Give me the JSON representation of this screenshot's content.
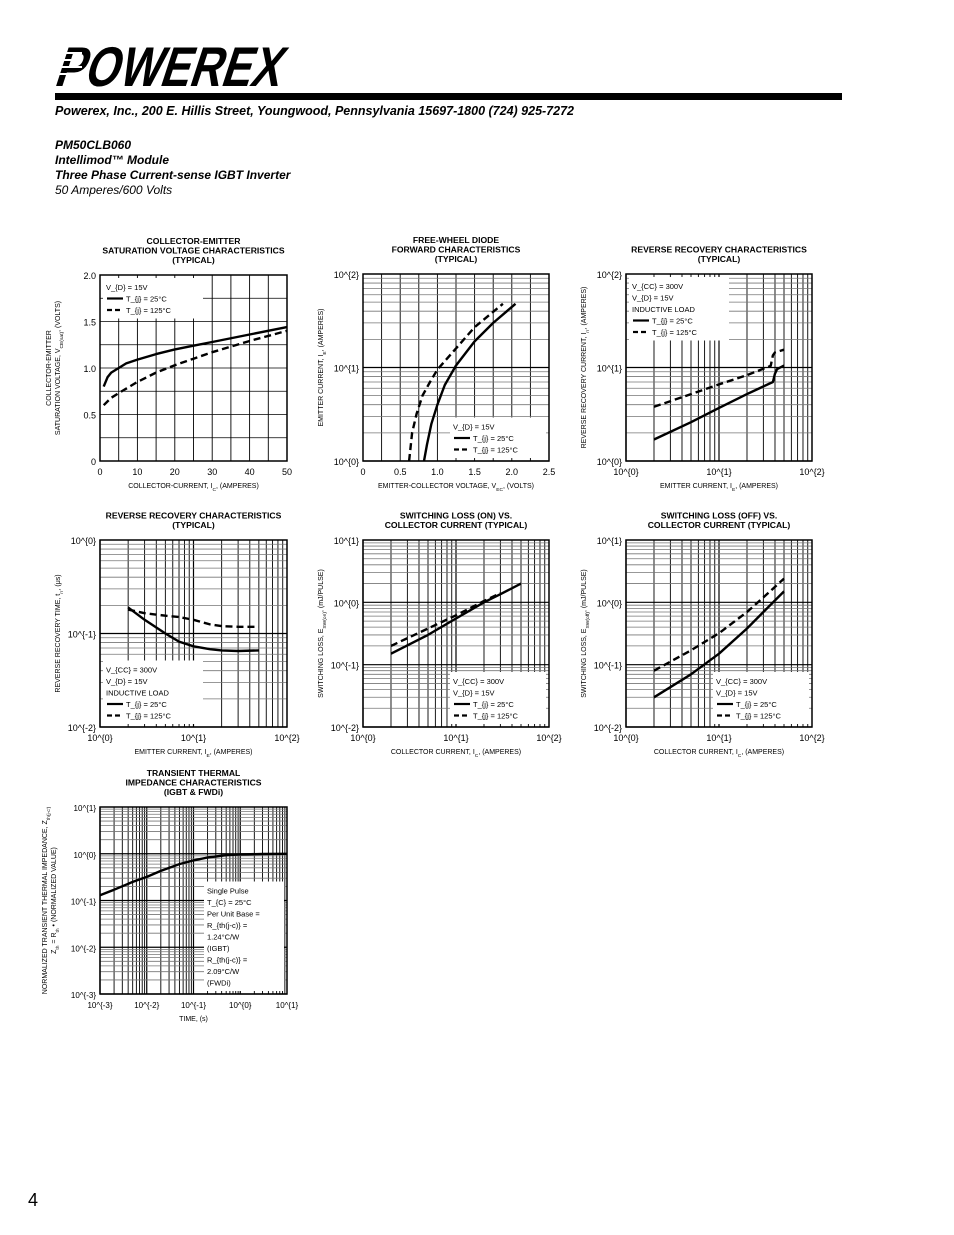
{
  "header": {
    "logo_text": "POWEREX",
    "address": "Powerex, Inc., 200 E. Hillis Street, Youngwood, Pennsylvania 15697-1800 (724) 925-7272",
    "part_number": "PM50CLB060",
    "product_line": "Intellimod™ Module",
    "description": "Three Phase Current-sense IGBT Inverter",
    "rating": "50 Amperes/600 Volts"
  },
  "page_number": "4",
  "chart_data": [
    {
      "type": "line",
      "title": [
        "COLLECTOR-EMITTER",
        "SATURATION VOLTAGE CHARACTERISTICS",
        "(TYPICAL)"
      ],
      "xlabel": "COLLECTOR-CURRENT, I_{C}, (AMPERES)",
      "ylabel": [
        "COLLECTOR-EMITTER",
        "SATURATION VOLTAGE, V_{CE(sat)}, (VOLTS)"
      ],
      "xscale": "linear",
      "yscale": "linear",
      "xlim": [
        0,
        50
      ],
      "ylim": [
        0,
        2.0
      ],
      "xticks": [
        {
          "v": 0,
          "label": "0"
        },
        {
          "v": 10,
          "label": "10"
        },
        {
          "v": 20,
          "label": "20"
        },
        {
          "v": 30,
          "label": "30"
        },
        {
          "v": 40,
          "label": "40"
        },
        {
          "v": 50,
          "label": "50"
        }
      ],
      "yticks": [
        {
          "v": 0,
          "label": "0"
        },
        {
          "v": 0.5,
          "label": "0.5"
        },
        {
          "v": 1.0,
          "label": "1.0"
        },
        {
          "v": 1.5,
          "label": "1.5"
        },
        {
          "v": 2.0,
          "label": "2.0"
        }
      ],
      "grid": true,
      "legend": {
        "placement": "top-left",
        "lines": [
          {
            "text": "V_{D} = 15V"
          },
          {
            "text": "T_{j} = 25°C",
            "style": "solid"
          },
          {
            "text": "T_{j} = 125°C",
            "style": "dashed"
          }
        ]
      },
      "series": [
        {
          "name": "T_{j} = 25°C",
          "style": "solid",
          "x": [
            1,
            2,
            3,
            5,
            7,
            10,
            15,
            20,
            25,
            30,
            40,
            50
          ],
          "y": [
            0.8,
            0.9,
            0.95,
            1.0,
            1.05,
            1.09,
            1.15,
            1.2,
            1.24,
            1.28,
            1.36,
            1.44
          ]
        },
        {
          "name": "T_{j} = 125°C",
          "style": "dashed",
          "x": [
            1,
            3,
            5,
            10,
            15,
            20,
            25,
            30,
            35,
            40,
            50
          ],
          "y": [
            0.6,
            0.68,
            0.73,
            0.85,
            0.95,
            1.03,
            1.1,
            1.17,
            1.23,
            1.29,
            1.4
          ]
        }
      ]
    },
    {
      "type": "line",
      "title": [
        "FREE-WHEEL DIODE",
        "FORWARD CHARACTERISTICS",
        "(TYPICAL)"
      ],
      "xlabel": "EMITTER-COLLECTOR VOLTAGE, V_{EC}, (VOLTS)",
      "ylabel": [
        "EMITTER CURRENT, I_{E}, (AMPERES)"
      ],
      "xscale": "linear",
      "yscale": "log",
      "xlim": [
        0,
        2.5
      ],
      "ylim": [
        1,
        100
      ],
      "xticks": [
        {
          "v": 0,
          "label": "0"
        },
        {
          "v": 0.5,
          "label": "0.5"
        },
        {
          "v": 1.0,
          "label": "1.0"
        },
        {
          "v": 1.5,
          "label": "1.5"
        },
        {
          "v": 2.0,
          "label": "2.0"
        },
        {
          "v": 2.5,
          "label": "2.5"
        }
      ],
      "yticks": [
        {
          "v": 1,
          "label": "10^{0}"
        },
        {
          "v": 10,
          "label": "10^{1}"
        },
        {
          "v": 100,
          "label": "10^{2}"
        }
      ],
      "grid": true,
      "legend": {
        "placement": "bottom-right",
        "lines": [
          {
            "text": "V_{D} = 15V"
          },
          {
            "text": "T_{j} = 25°C",
            "style": "solid"
          },
          {
            "text": "T_{j} = 125°C",
            "style": "dashed"
          }
        ]
      },
      "series": [
        {
          "name": "T_{j} = 25°C",
          "style": "solid",
          "x": [
            0.82,
            0.86,
            0.92,
            1.0,
            1.1,
            1.25,
            1.5,
            1.75,
            2.05
          ],
          "y": [
            1,
            1.5,
            2.5,
            4,
            6.5,
            10.5,
            19,
            30,
            48
          ]
        },
        {
          "name": "T_{j} = 125°C",
          "style": "dashed",
          "x": [
            0.62,
            0.66,
            0.72,
            0.8,
            0.9,
            1.0,
            1.25,
            1.5,
            1.88
          ],
          "y": [
            1,
            2,
            3.2,
            5,
            7,
            9.5,
            16,
            27,
            48
          ]
        }
      ]
    },
    {
      "type": "line",
      "title": [
        "REVERSE RECOVERY CHARACTERISTICS",
        "(TYPICAL)"
      ],
      "xlabel": "EMITTER CURRENT, I_{E}, (AMPERES)",
      "ylabel": [
        "REVERSE RECOVERY CURRENT, I_{rr}, (AMPERES)"
      ],
      "xscale": "log",
      "yscale": "log",
      "xlim": [
        1,
        100
      ],
      "ylim": [
        1,
        100
      ],
      "xticks": [
        {
          "v": 1,
          "label": "10^{0}"
        },
        {
          "v": 10,
          "label": "10^{1}"
        },
        {
          "v": 100,
          "label": "10^{2}"
        }
      ],
      "yticks": [
        {
          "v": 1,
          "label": "10^{0}"
        },
        {
          "v": 10,
          "label": "10^{1}"
        },
        {
          "v": 100,
          "label": "10^{2}"
        }
      ],
      "grid": true,
      "legend": {
        "placement": "top-left",
        "lines": [
          {
            "text": "V_{CC} = 300V"
          },
          {
            "text": "V_{D} = 15V"
          },
          {
            "text": "INDUCTIVE LOAD"
          },
          {
            "text": "T_{j} = 25°C",
            "style": "solid"
          },
          {
            "text": "T_{j} = 125°C",
            "style": "dashed"
          }
        ]
      },
      "series": [
        {
          "name": "T_{j} = 25°C",
          "style": "solid",
          "x": [
            2,
            5,
            10,
            20,
            38,
            40,
            42,
            50
          ],
          "y": [
            1.7,
            2.6,
            3.7,
            5.2,
            7.0,
            8.6,
            9.6,
            10.5
          ]
        },
        {
          "name": "T_{j} = 125°C",
          "style": "dashed",
          "x": [
            2,
            5,
            10,
            20,
            36,
            38,
            40,
            50
          ],
          "y": [
            3.8,
            5.2,
            6.6,
            8.3,
            10.4,
            13.5,
            14.5,
            15.5
          ]
        }
      ]
    },
    {
      "type": "line",
      "title": [
        "REVERSE RECOVERY CHARACTERISTICS",
        "(TYPICAL)"
      ],
      "xlabel": "EMITTER CURRENT, I_{E}, (AMPERES)",
      "ylabel": [
        "REVERSE RECOVERY TIME, t_{rr}, (μs)"
      ],
      "xscale": "log",
      "yscale": "log",
      "xlim": [
        1,
        100
      ],
      "ylim": [
        0.01,
        1
      ],
      "xticks": [
        {
          "v": 1,
          "label": "10^{0}"
        },
        {
          "v": 10,
          "label": "10^{1}"
        },
        {
          "v": 100,
          "label": "10^{2}"
        }
      ],
      "yticks": [
        {
          "v": 0.01,
          "label": "10^{-2}"
        },
        {
          "v": 0.1,
          "label": "10^{-1}"
        },
        {
          "v": 1,
          "label": "10^{0}"
        }
      ],
      "grid": true,
      "legend": {
        "placement": "bottom-left",
        "lines": [
          {
            "text": "V_{CC} = 300V"
          },
          {
            "text": "V_{D} = 15V"
          },
          {
            "text": "INDUCTIVE LOAD"
          },
          {
            "text": "T_{j} = 25°C",
            "style": "solid"
          },
          {
            "text": "T_{j} = 125°C",
            "style": "dashed"
          }
        ]
      },
      "series": [
        {
          "name": "T_{j} = 25°C",
          "style": "solid",
          "x": [
            2,
            3,
            5,
            7,
            10,
            15,
            20,
            30,
            50
          ],
          "y": [
            0.19,
            0.14,
            0.1,
            0.082,
            0.073,
            0.068,
            0.066,
            0.065,
            0.066
          ]
        },
        {
          "name": "T_{j} = 125°C",
          "style": "dashed",
          "x": [
            2,
            3,
            5,
            7,
            10,
            15,
            20,
            30,
            50
          ],
          "y": [
            0.18,
            0.165,
            0.155,
            0.15,
            0.14,
            0.125,
            0.12,
            0.118,
            0.118
          ]
        }
      ]
    },
    {
      "type": "line",
      "title": [
        "SWITCHING LOSS (ON) VS.",
        "COLLECTOR CURRENT (TYPICAL)"
      ],
      "xlabel": "COLLECTOR CURRENT, I_{C}, (AMPERES)",
      "ylabel": [
        "SWITCHING LOSS, E_{SW(on)}, (mJ/PULSE)"
      ],
      "xscale": "log",
      "yscale": "log",
      "xlim": [
        1,
        100
      ],
      "ylim": [
        0.01,
        10
      ],
      "xticks": [
        {
          "v": 1,
          "label": "10^{0}"
        },
        {
          "v": 10,
          "label": "10^{1}"
        },
        {
          "v": 100,
          "label": "10^{2}"
        }
      ],
      "yticks": [
        {
          "v": 0.01,
          "label": "10^{-2}"
        },
        {
          "v": 0.1,
          "label": "10^{-1}"
        },
        {
          "v": 1,
          "label": "10^{0}"
        },
        {
          "v": 10,
          "label": "10^{1}"
        }
      ],
      "grid": true,
      "legend": {
        "placement": "bottom-right",
        "lines": [
          {
            "text": "V_{CC} = 300V"
          },
          {
            "text": "V_{D} = 15V"
          },
          {
            "text": "T_{j} = 25°C",
            "style": "solid"
          },
          {
            "text": "T_{j} = 125°C",
            "style": "dashed"
          }
        ]
      },
      "series": [
        {
          "name": "T_{j} = 25°C",
          "style": "solid",
          "x": [
            2,
            5,
            10,
            20,
            30,
            50
          ],
          "y": [
            0.15,
            0.3,
            0.55,
            1.0,
            1.35,
            2.0
          ]
        },
        {
          "name": "T_{j} = 125°C",
          "style": "dashed",
          "x": [
            2,
            5,
            10,
            20,
            30
          ],
          "y": [
            0.2,
            0.38,
            0.62,
            1.05,
            1.4
          ]
        }
      ]
    },
    {
      "type": "line",
      "title": [
        "SWITCHING LOSS (OFF) VS.",
        "COLLECTOR CURRENT (TYPICAL)"
      ],
      "xlabel": "COLLECTOR CURRENT, I_{C}, (AMPERES)",
      "ylabel": [
        "SWITCHING LOSS, E_{SW(off)}, (mJ/PULSE)"
      ],
      "xscale": "log",
      "yscale": "log",
      "xlim": [
        1,
        100
      ],
      "ylim": [
        0.01,
        10
      ],
      "xticks": [
        {
          "v": 1,
          "label": "10^{0}"
        },
        {
          "v": 10,
          "label": "10^{1}"
        },
        {
          "v": 100,
          "label": "10^{2}"
        }
      ],
      "yticks": [
        {
          "v": 0.01,
          "label": "10^{-2}"
        },
        {
          "v": 0.1,
          "label": "10^{-1}"
        },
        {
          "v": 1,
          "label": "10^{0}"
        },
        {
          "v": 10,
          "label": "10^{1}"
        }
      ],
      "grid": true,
      "legend": {
        "placement": "bottom-right",
        "lines": [
          {
            "text": "V_{CC} = 300V"
          },
          {
            "text": "V_{D} = 15V"
          },
          {
            "text": "T_{j} = 25°C",
            "style": "solid"
          },
          {
            "text": "T_{j} = 125°C",
            "style": "dashed"
          }
        ]
      },
      "series": [
        {
          "name": "T_{j} = 25°C",
          "style": "solid",
          "x": [
            2,
            5,
            10,
            20,
            30,
            50
          ],
          "y": [
            0.03,
            0.07,
            0.15,
            0.38,
            0.7,
            1.5
          ]
        },
        {
          "name": "T_{j} = 125°C",
          "style": "dashed",
          "x": [
            2,
            5,
            10,
            20,
            30,
            50
          ],
          "y": [
            0.08,
            0.17,
            0.32,
            0.7,
            1.2,
            2.4
          ]
        }
      ]
    },
    {
      "type": "line",
      "title": [
        "TRANSIENT THERMAL",
        "IMPEDANCE CHARACTERISTICS",
        "(IGBT & FWDi)"
      ],
      "xlabel": "TIME, (s)",
      "ylabel": [
        "NORMALIZED TRANSIENT THERMAL IMPEDANCE, Z_{th(j-c')}",
        "Z_{th} = R_{th} • (NORMALIZED VALUE)"
      ],
      "xscale": "log",
      "yscale": "log",
      "xlim": [
        0.001,
        10
      ],
      "ylim": [
        0.001,
        10
      ],
      "xticks": [
        {
          "v": 0.001,
          "label": "10^{-3}"
        },
        {
          "v": 0.01,
          "label": "10^{-2}"
        },
        {
          "v": 0.1,
          "label": "10^{-1}"
        },
        {
          "v": 1,
          "label": "10^{0}"
        },
        {
          "v": 10,
          "label": "10^{1}"
        }
      ],
      "yticks": [
        {
          "v": 0.001,
          "label": "10^{-3}"
        },
        {
          "v": 0.01,
          "label": "10^{-2}"
        },
        {
          "v": 0.1,
          "label": "10^{-1}"
        },
        {
          "v": 1,
          "label": "10^{0}"
        },
        {
          "v": 10,
          "label": "10^{1}"
        }
      ],
      "grid": true,
      "legend": {
        "placement": "bottom-right",
        "lines": [
          {
            "text": "Single Pulse"
          },
          {
            "text": "T_{C} = 25°C"
          },
          {
            "text": "Per Unit Base ="
          },
          {
            "text": "R_{th(j-c)} ="
          },
          {
            "text": "    1.24°C/W"
          },
          {
            "text": "    (IGBT)"
          },
          {
            "text": "R_{th(j-c)} ="
          },
          {
            "text": "    2.09°C/W"
          },
          {
            "text": "    (FWDi)"
          }
        ]
      },
      "series": [
        {
          "style": "solid",
          "x": [
            0.001,
            0.002,
            0.005,
            0.01,
            0.02,
            0.05,
            0.1,
            0.2,
            0.5,
            1,
            3,
            10
          ],
          "y": [
            0.13,
            0.17,
            0.25,
            0.32,
            0.43,
            0.6,
            0.72,
            0.83,
            0.93,
            0.97,
            0.99,
            1.0
          ]
        }
      ]
    }
  ]
}
